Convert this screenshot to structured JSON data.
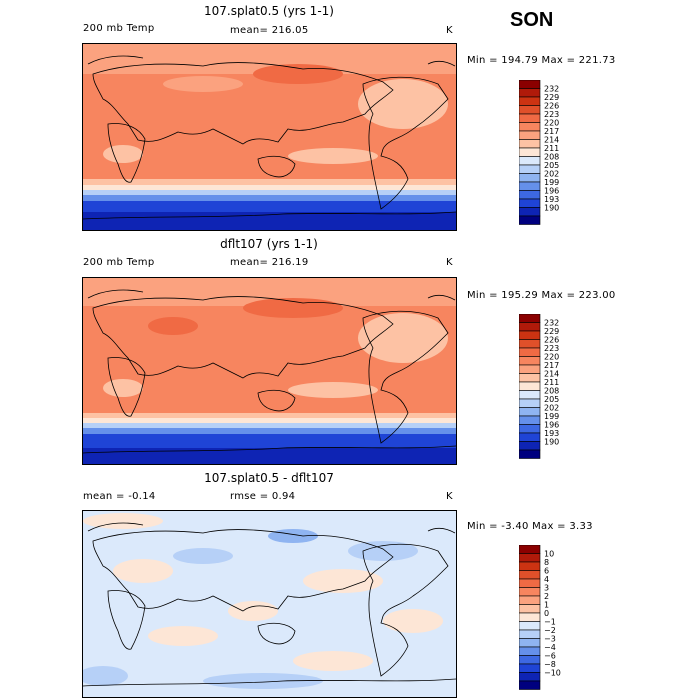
{
  "season": "SON",
  "panels": [
    {
      "title": "107.splat0.5 (yrs 1-1)",
      "left_label": "200 mb Temp",
      "center_label": "mean= 216.05",
      "units": "K",
      "minmax": "Min = 194.79 Max = 221.73",
      "colorbar_labels": [
        "232",
        "229",
        "226",
        "223",
        "220",
        "217",
        "214",
        "211",
        "208",
        "205",
        "202",
        "199",
        "196",
        "193",
        "190"
      ]
    },
    {
      "title": "dflt107 (yrs 1-1)",
      "left_label": "200 mb Temp",
      "center_label": "mean= 216.19",
      "units": "K",
      "minmax": "Min = 195.29 Max = 223.00",
      "colorbar_labels": [
        "232",
        "229",
        "226",
        "223",
        "220",
        "217",
        "214",
        "211",
        "208",
        "205",
        "202",
        "199",
        "196",
        "193",
        "190"
      ]
    },
    {
      "title": "107.splat0.5 - dflt107",
      "left_label": "mean = -0.14",
      "center_label": "rmse = 0.94",
      "units": "K",
      "minmax": "Min = -3.40 Max = 3.33",
      "colorbar_labels": [
        "10",
        "8",
        "6",
        "4",
        "3",
        "2",
        "1",
        "0",
        "−1",
        "−2",
        "−3",
        "−4",
        "−6",
        "−8",
        "−10"
      ]
    }
  ],
  "colors": {
    "abs_scale": [
      "#8b0000",
      "#b01a0a",
      "#cc3312",
      "#e0502a",
      "#f06a44",
      "#f7855f",
      "#fba27f",
      "#fdc2a4",
      "#fde6d6",
      "#dbe9fb",
      "#b6d0f7",
      "#8fb4f1",
      "#6590ea",
      "#3d68e2",
      "#1f44d6",
      "#0e24b4",
      "#00007f"
    ],
    "diff_scale": [
      "#8b0000",
      "#b01a0a",
      "#cc3312",
      "#e0502a",
      "#f06a44",
      "#f7855f",
      "#fba27f",
      "#fdc2a4",
      "#fde6d6",
      "#dbe9fb",
      "#b6d0f7",
      "#8fb4f1",
      "#6590ea",
      "#3d68e2",
      "#1f44d6",
      "#0e24b4",
      "#00007f"
    ],
    "land_outline": "#000000"
  }
}
